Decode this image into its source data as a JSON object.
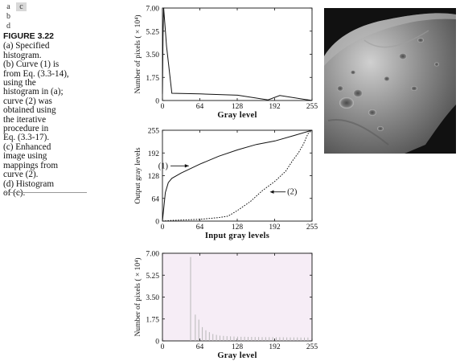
{
  "panel_key": {
    "a": "a",
    "c": "c",
    "b": "b",
    "d": "d"
  },
  "caption": {
    "figure": "FIGURE 3.22",
    "lines": [
      "(a) Specified",
      "histogram.",
      "(b) Curve (1) is",
      "from Eq. (3.3-14),",
      "using the",
      "histogram in (a);",
      "curve (2) was",
      "obtained using",
      "the iterative",
      "procedure in",
      "Eq. (3.3-17).",
      "(c) Enhanced",
      "image using",
      "mappings from",
      "curve (2).",
      "(d) Histogram",
      "of (c)."
    ]
  },
  "colors": {
    "axes": "#111111",
    "hist_bg": "#f6edf6",
    "hist_bar": "#b8b8b8"
  },
  "chart_data": [
    {
      "id": "a",
      "type": "line",
      "title": "",
      "xlabel": "Gray level",
      "ylabel": "Number of pixels ( × 10⁴)",
      "xlim": [
        0,
        255
      ],
      "ylim": [
        0,
        7
      ],
      "xticks": [
        "0",
        "64",
        "128",
        "192",
        "255"
      ],
      "yticks": [
        "0",
        "1.75",
        "3.50",
        "5.25",
        "7.00"
      ],
      "series": [
        {
          "x": [
            0,
            1,
            2,
            4,
            7,
            16,
            64,
            128,
            180,
            200,
            255
          ],
          "y": [
            0.5,
            4.8,
            7.0,
            5.9,
            4.1,
            0.55,
            0.5,
            0.4,
            0.05,
            0.38,
            0.0
          ]
        }
      ]
    },
    {
      "id": "b",
      "type": "line",
      "title": "",
      "xlabel": "Input gray levels",
      "ylabel": "Output gray levels",
      "xlim": [
        0,
        255
      ],
      "ylim": [
        0,
        255
      ],
      "xticks": [
        "0",
        "64",
        "128",
        "192",
        "255"
      ],
      "yticks": [
        "0",
        "64",
        "128",
        "192",
        "255"
      ],
      "annotations": [
        "(1)",
        "(2)"
      ],
      "series": [
        {
          "name": "(1)",
          "x": [
            0,
            5,
            10,
            16,
            32,
            64,
            96,
            128,
            160,
            192,
            224,
            255
          ],
          "y": [
            0,
            80,
            108,
            120,
            135,
            160,
            182,
            200,
            215,
            225,
            240,
            255
          ]
        },
        {
          "name": "(2)",
          "x": [
            0,
            16,
            64,
            96,
            112,
            128,
            150,
            170,
            192,
            210,
            222,
            232,
            240,
            248,
            255
          ],
          "y": [
            0,
            2,
            5,
            10,
            14,
            30,
            55,
            85,
            112,
            140,
            170,
            192,
            215,
            245,
            255
          ]
        }
      ]
    },
    {
      "id": "d",
      "type": "bar",
      "title": "",
      "xlabel": "Gray level",
      "ylabel": "Number of pixels ( × 10⁴)",
      "xlim": [
        0,
        255
      ],
      "ylim": [
        0,
        7
      ],
      "xticks": [
        "0",
        "64",
        "128",
        "192",
        "255"
      ],
      "yticks": [
        "0",
        "1.75",
        "3.50",
        "5.25",
        "7.00"
      ],
      "bars": [
        {
          "x": 48,
          "y": 6.7
        },
        {
          "x": 56,
          "y": 2.1
        },
        {
          "x": 62,
          "y": 1.7
        },
        {
          "x": 68,
          "y": 1.1
        },
        {
          "x": 74,
          "y": 0.85
        },
        {
          "x": 80,
          "y": 0.7
        },
        {
          "x": 86,
          "y": 0.55
        },
        {
          "x": 92,
          "y": 0.48
        },
        {
          "x": 98,
          "y": 0.42
        },
        {
          "x": 104,
          "y": 0.4
        },
        {
          "x": 110,
          "y": 0.38
        },
        {
          "x": 116,
          "y": 0.36
        },
        {
          "x": 122,
          "y": 0.35
        },
        {
          "x": 128,
          "y": 0.34
        },
        {
          "x": 134,
          "y": 0.33
        },
        {
          "x": 140,
          "y": 0.33
        },
        {
          "x": 146,
          "y": 0.32
        },
        {
          "x": 152,
          "y": 0.32
        },
        {
          "x": 158,
          "y": 0.31
        },
        {
          "x": 164,
          "y": 0.31
        },
        {
          "x": 170,
          "y": 0.3
        },
        {
          "x": 176,
          "y": 0.3
        },
        {
          "x": 182,
          "y": 0.3
        },
        {
          "x": 188,
          "y": 0.3
        },
        {
          "x": 194,
          "y": 0.29
        },
        {
          "x": 200,
          "y": 0.29
        },
        {
          "x": 206,
          "y": 0.29
        },
        {
          "x": 212,
          "y": 0.28
        },
        {
          "x": 218,
          "y": 0.28
        },
        {
          "x": 224,
          "y": 0.28
        },
        {
          "x": 230,
          "y": 0.28
        },
        {
          "x": 236,
          "y": 0.27
        },
        {
          "x": 242,
          "y": 0.27
        },
        {
          "x": 248,
          "y": 0.27
        }
      ]
    }
  ]
}
